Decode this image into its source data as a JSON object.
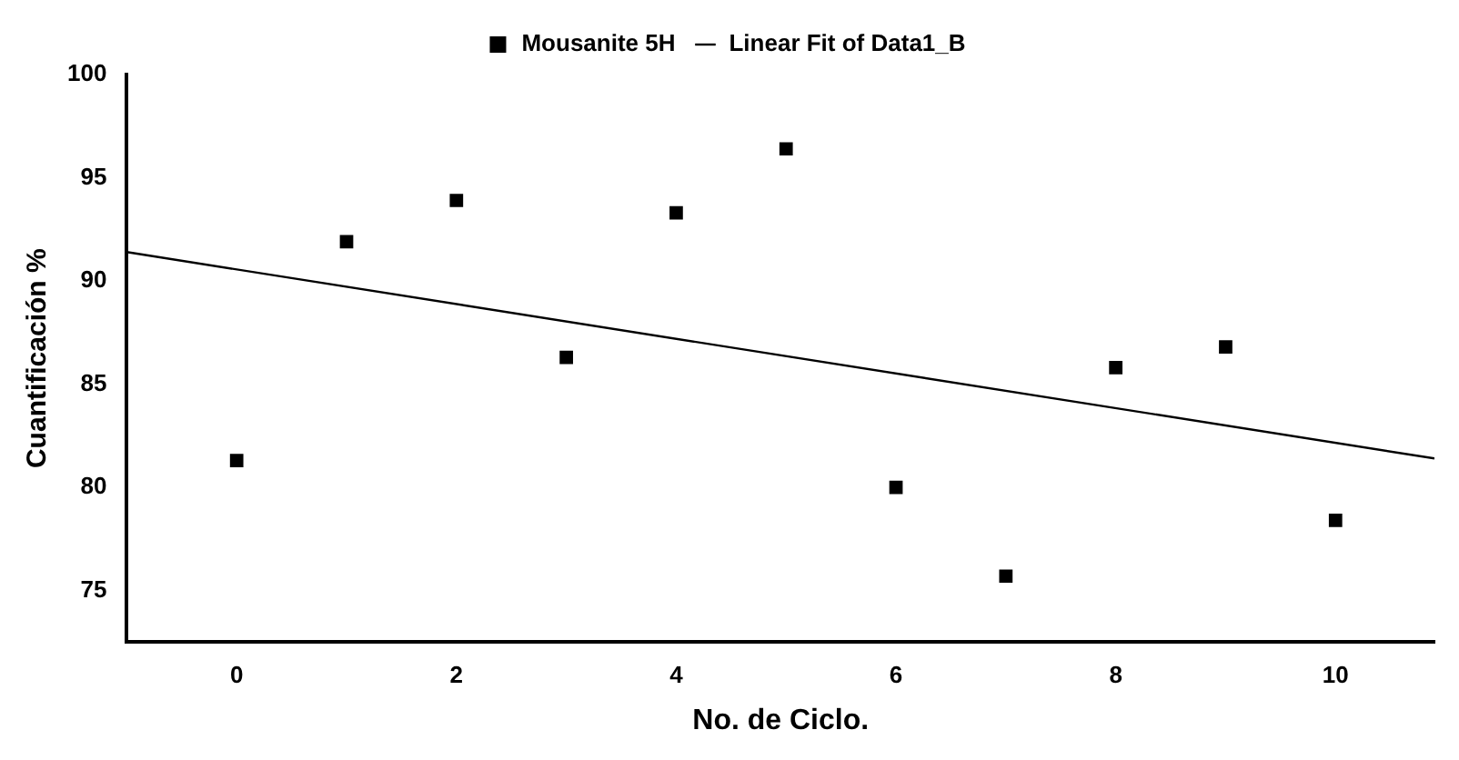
{
  "chart_data": {
    "type": "scatter",
    "xlabel": "No. de Ciclo.",
    "ylabel": "Cuantificación %",
    "xlim": [
      -1,
      10.9
    ],
    "xticks": [
      0,
      2,
      4,
      6,
      8,
      10
    ],
    "ylim": [
      72.5,
      100
    ],
    "yticks": [
      75,
      80,
      85,
      90,
      95,
      100
    ],
    "grid": false,
    "legend": "top",
    "series": [
      {
        "name": "Mousanite 5H",
        "type": "scatter",
        "marker": "square",
        "color": "#000000",
        "x": [
          0,
          1,
          2,
          3,
          4,
          5,
          6,
          7,
          8,
          9,
          10
        ],
        "values": [
          81.3,
          91.9,
          93.9,
          86.3,
          93.3,
          96.4,
          80.0,
          75.7,
          85.8,
          86.8,
          78.4
        ]
      },
      {
        "name": "Linear Fit of Data1_B",
        "type": "line",
        "marker": "none",
        "line_style": "solid",
        "color": "#000000",
        "x": [
          -1,
          10.9
        ],
        "values": [
          91.4,
          81.4
        ]
      }
    ]
  }
}
